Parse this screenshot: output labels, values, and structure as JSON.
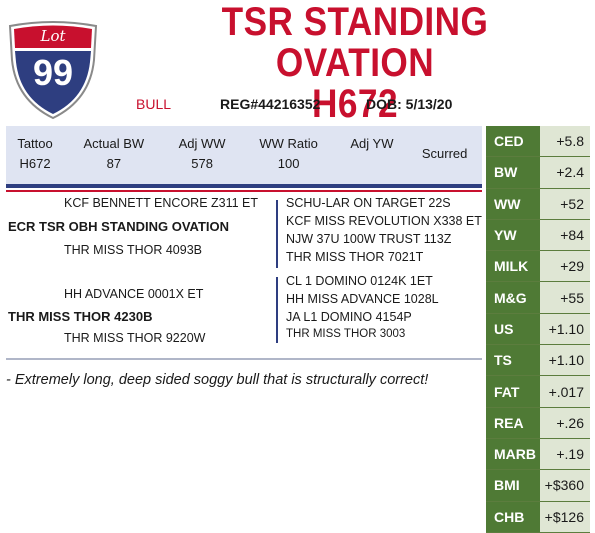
{
  "lot": {
    "label": "Lot",
    "number": "99"
  },
  "title": {
    "line1": "TSR STANDING OVATION",
    "line2": "H672"
  },
  "meta": {
    "sex": "BULL",
    "reg": "REG#44216352",
    "dob": "DOB: 5/13/20"
  },
  "stats": {
    "headers": [
      "Tattoo",
      "Actual BW",
      "Adj WW",
      "WW Ratio",
      "Adj YW",
      ""
    ],
    "values": [
      "H672",
      "87",
      "578",
      "100",
      "",
      ""
    ],
    "extra": "Scurred"
  },
  "pedigree": {
    "sire_sire": "KCF BENNETT ENCORE Z311 ET",
    "sire": "ECR TSR OBH STANDING OVATION",
    "sire_dam": "THR MISS THOR 4093B",
    "dam_sire": "HH ADVANCE 0001X ET",
    "dam": "THR MISS THOR 4230B",
    "dam_dam": "THR MISS THOR 9220W",
    "right_top": [
      "SCHU-LAR ON TARGET 22S",
      "KCF MISS REVOLUTION X338 ET",
      "NJW 37U 100W TRUST 113Z",
      "THR MISS THOR 7021T"
    ],
    "right_bottom": [
      "CL 1 DOMINO 0124K 1ET",
      "HH MISS ADVANCE 1028L",
      "JA L1 DOMINO 4154P",
      "THR MISS THOR 3003"
    ]
  },
  "comment": "- Extremely long, deep sided soggy bull that is structurally correct!",
  "epd": [
    {
      "label": "CED",
      "value": "+5.8"
    },
    {
      "label": "BW",
      "value": "+2.4"
    },
    {
      "label": "WW",
      "value": "+52"
    },
    {
      "label": "YW",
      "value": "+84"
    },
    {
      "label": "MILK",
      "value": "+29"
    },
    {
      "label": "M&G",
      "value": "+55"
    },
    {
      "label": "US",
      "value": "+1.10"
    },
    {
      "label": "TS",
      "value": "+1.10"
    },
    {
      "label": "FAT",
      "value": "+.017"
    },
    {
      "label": "REA",
      "value": "+.26"
    },
    {
      "label": "MARB",
      "value": "+.19"
    },
    {
      "label": "BMI",
      "value": "+$360"
    },
    {
      "label": "CHB",
      "value": "+$126"
    }
  ],
  "colors": {
    "accent": "#c8102e",
    "navy": "#2e3e80",
    "epd_green": "#4f7a35",
    "epd_value_bg": "#dfe6d4",
    "stats_bg": "#dfe4f2"
  }
}
